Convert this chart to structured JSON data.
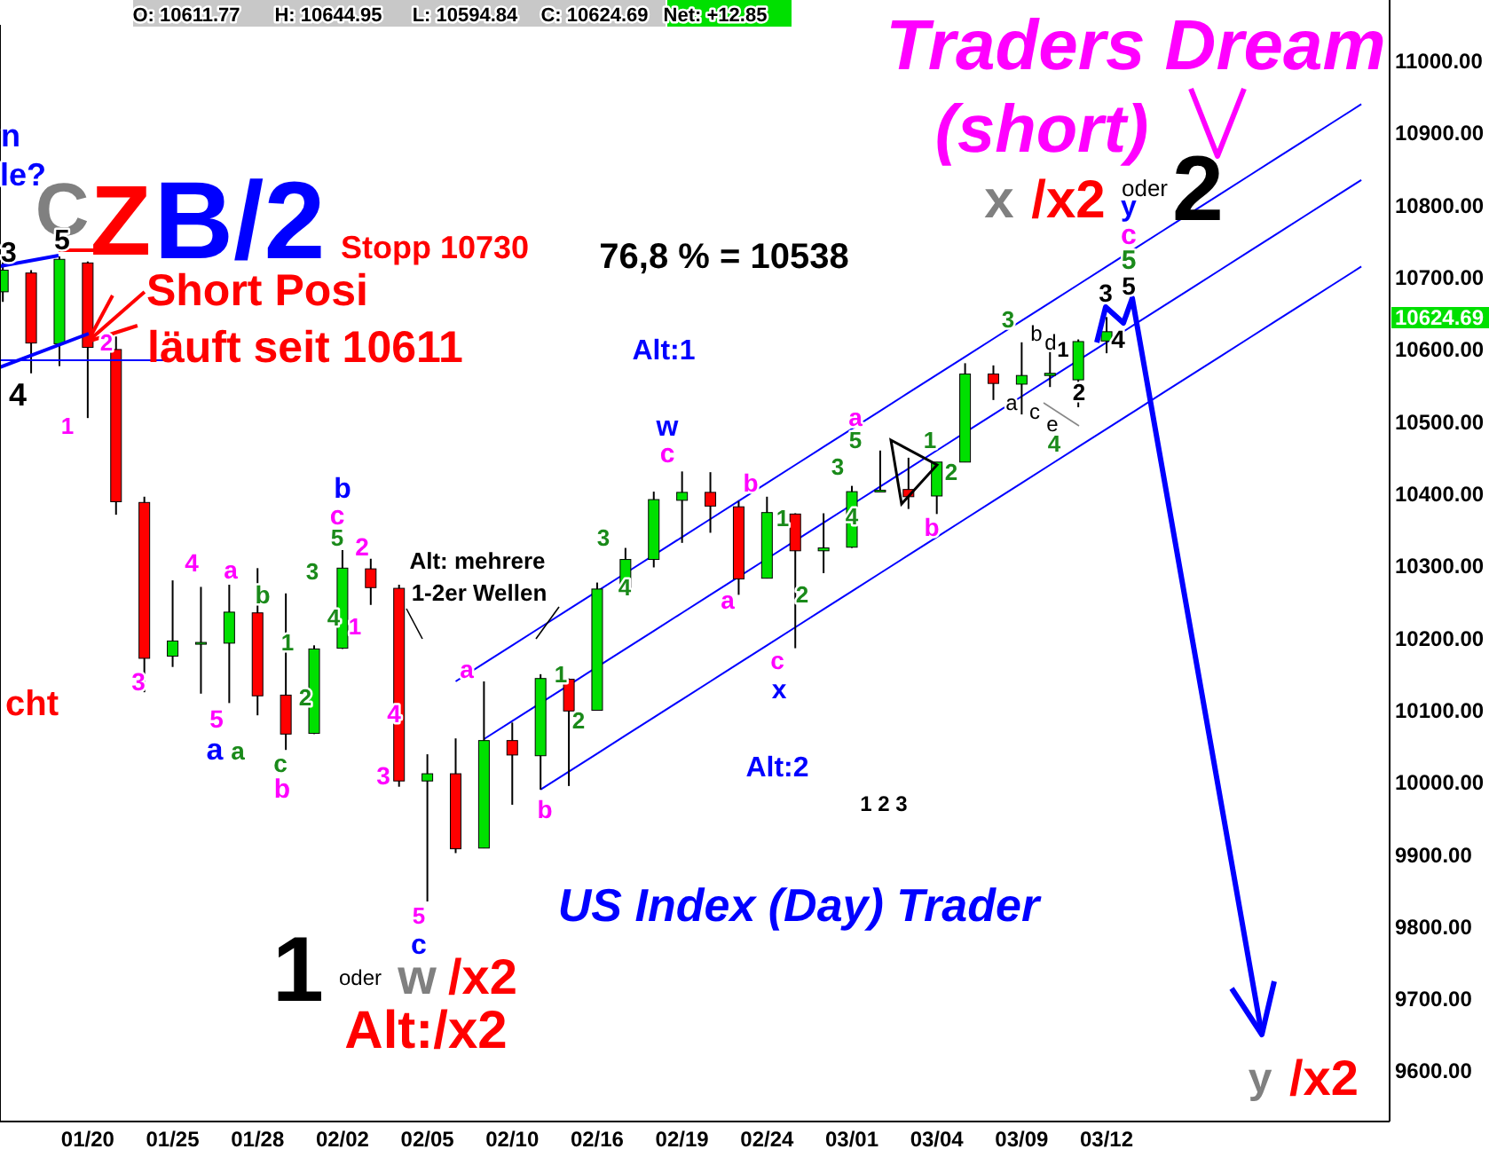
{
  "chart_data": {
    "type": "candlestick",
    "categories": [
      null,
      null,
      null,
      "01/20",
      null,
      null,
      "01/25",
      null,
      null,
      "01/28",
      null,
      null,
      "02/02",
      null,
      null,
      "02/05",
      null,
      null,
      "02/10",
      null,
      null,
      "02/16",
      null,
      null,
      "02/19",
      null,
      null,
      "02/24",
      null,
      null,
      "03/01",
      null,
      null,
      "03/04",
      null,
      null,
      "03/09",
      null,
      null,
      "03/12",
      null,
      null,
      null,
      null,
      null,
      null,
      null,
      null,
      null
    ],
    "ohlc": [
      [
        10680,
        10723,
        10666,
        10710
      ],
      [
        10706,
        10710,
        10567,
        10609
      ],
      [
        10608,
        10729,
        10577,
        10725
      ],
      [
        10720,
        10722,
        10505,
        10603
      ],
      [
        10600,
        10618,
        10371,
        10389
      ],
      [
        10388,
        10396,
        10125,
        10172
      ],
      [
        10175,
        10280,
        10160,
        10196
      ],
      [
        10194,
        10271,
        10123,
        10194
      ],
      [
        10193,
        10274,
        10110,
        10236
      ],
      [
        10235,
        10297,
        10093,
        10120
      ],
      [
        10121,
        10262,
        10045,
        10067
      ],
      [
        10068,
        10190,
        10067,
        10185
      ],
      [
        10186,
        10322,
        10185,
        10297
      ],
      [
        10296,
        10310,
        10246,
        10270
      ],
      [
        10269,
        10274,
        9994,
        10002
      ],
      [
        10002,
        10039,
        9835,
        10012
      ],
      [
        10012,
        10061,
        9902,
        9908
      ],
      [
        9909,
        10140,
        9909,
        10058
      ],
      [
        10058,
        10083,
        9969,
        10038
      ],
      [
        10037,
        10150,
        9990,
        10144
      ],
      [
        10143,
        10144,
        9995,
        10099
      ],
      [
        10100,
        10277,
        10100,
        10268
      ],
      [
        10268,
        10325,
        10266,
        10309
      ],
      [
        10309,
        10403,
        10298,
        10392
      ],
      [
        10391,
        10431,
        10332,
        10402
      ],
      [
        10402,
        10430,
        10346,
        10383
      ],
      [
        10382,
        10390,
        10260,
        10282
      ],
      [
        10283,
        10396,
        10283,
        10374
      ],
      [
        10372,
        10373,
        10186,
        10321
      ],
      [
        10321,
        10373,
        10290,
        10325
      ],
      [
        10326,
        10411,
        10325,
        10403
      ],
      [
        10404,
        10460,
        10402,
        10405
      ],
      [
        10406,
        10450,
        10379,
        10396
      ],
      [
        10397,
        10444,
        10372,
        10444
      ],
      [
        10444,
        10581,
        10444,
        10566
      ],
      [
        10566,
        10578,
        10530,
        10553
      ],
      [
        10552,
        10610,
        10510,
        10564
      ],
      [
        10564,
        10597,
        10548,
        10567
      ],
      [
        10558,
        10614,
        10520,
        10611
      ],
      [
        10611.77,
        10644.95,
        10594.84,
        10624.69
      ],
      null,
      null,
      null,
      null,
      null,
      null,
      null,
      null,
      null
    ],
    "colors": [
      "#00e000",
      "#ff0000",
      "#00e000",
      "#ff0000",
      "#ff0000",
      "#ff0000",
      "#00e000",
      "#00e000",
      "#00e000",
      "#ff0000",
      "#ff0000",
      "#00e000",
      "#00e000",
      "#ff0000",
      "#ff0000",
      "#00e000",
      "#ff0000",
      "#00e000",
      "#ff0000",
      "#00e000",
      "#ff0000",
      "#00e000",
      "#00e000",
      "#00e000",
      "#00e000",
      "#ff0000",
      "#ff0000",
      "#00e000",
      "#ff0000",
      "#00e000",
      "#00e000",
      "#00e000",
      "#ff0000",
      "#00e000",
      "#00e000",
      "#ff0000",
      "#00e000",
      "#00e000",
      "#00e000",
      "#00e000",
      null,
      null,
      null,
      null,
      null,
      null,
      null,
      null,
      null
    ],
    "series": [
      {
        "type": "line",
        "color": "#0000ff",
        "values": [
          null,
          null,
          null,
          null,
          null,
          null,
          null,
          null,
          null,
          null,
          null,
          null,
          null,
          null,
          null,
          null,
          10140,
          10165,
          10190,
          10215,
          10240,
          10265,
          10290,
          10315,
          10340,
          10365,
          10390,
          10415,
          10440,
          10465,
          10490,
          10515,
          10540,
          10565,
          10590,
          10615,
          10640,
          10665,
          10690,
          10715,
          10740,
          10765,
          10790,
          10815,
          10840,
          10865,
          10890,
          10915,
          10940
        ]
      },
      {
        "type": "line",
        "color": "#0000ff",
        "values": [
          null,
          null,
          null,
          null,
          null,
          null,
          null,
          null,
          null,
          null,
          null,
          null,
          null,
          null,
          null,
          null,
          null,
          10060,
          10085,
          10110,
          10135,
          10160,
          10185,
          10210,
          10235,
          10260,
          10285,
          10310,
          10335,
          10360,
          10385,
          10410,
          10435,
          10460,
          10485,
          10510,
          10535,
          10560,
          10585,
          10610,
          10635,
          10660,
          10685,
          10710,
          10735,
          10760,
          10785,
          10810,
          10835
        ]
      },
      {
        "type": "line",
        "color": "#0000ff",
        "values": [
          null,
          null,
          null,
          null,
          null,
          null,
          null,
          null,
          null,
          null,
          null,
          null,
          null,
          null,
          null,
          null,
          null,
          null,
          null,
          9990,
          10015,
          10040,
          10065,
          10090,
          10115,
          10140,
          10165,
          10190,
          10215,
          10240,
          10265,
          10290,
          10315,
          10340,
          10365,
          10390,
          10415,
          10440,
          10465,
          10490,
          10515,
          10540,
          10565,
          10590,
          10615,
          10640,
          10665,
          10690,
          10715
        ]
      }
    ],
    "ylim": [
      9530,
      11050
    ],
    "yticks": [
      {
        "value": 9600,
        "label": "9600.00"
      },
      {
        "value": 9700,
        "label": "9700.00"
      },
      {
        "value": 9800,
        "label": "9800.00"
      },
      {
        "value": 9900,
        "label": "9900.00"
      },
      {
        "value": 10000,
        "label": "10000.00"
      },
      {
        "value": 10100,
        "label": "10100.00"
      },
      {
        "value": 10200,
        "label": "10200.00"
      },
      {
        "value": 10300,
        "label": "10300.00"
      },
      {
        "value": 10400,
        "label": "10400.00"
      },
      {
        "value": 10500,
        "label": "10500.00"
      },
      {
        "value": 10600,
        "label": "10600.00"
      },
      {
        "value": 10700,
        "label": "10700.00"
      },
      {
        "value": 10800,
        "label": "10800.00"
      },
      {
        "value": 10900,
        "label": "10900.00"
      },
      {
        "value": 11000,
        "label": "11000.00"
      }
    ],
    "annotations": [
      "O: 10611.77",
      "H: 10644.95",
      "L: 10594.84",
      "C: 10624.69",
      "Net: +12.85",
      "Traders Dream",
      "(short)",
      "x",
      "/x2",
      "oder",
      "2",
      "y",
      "c",
      "5",
      "5",
      "3",
      "4",
      "76,8 % = 10538",
      "Stopp 10730",
      {
        "text": "Short Posi",
        "x": "01/20",
        "y": 10611
      },
      "läuft seit 10611",
      "C",
      "Z",
      "B/2",
      "n",
      "le?",
      "cht",
      "3",
      "5",
      "4",
      "1",
      "2",
      "Alt:1",
      "w",
      "c",
      "b",
      "c",
      "5",
      "2",
      "3",
      "1",
      "4",
      "a",
      "b",
      "1",
      "2",
      "4",
      "3",
      "5",
      "a",
      "a",
      "c",
      "b",
      "Alt: mehrere",
      "1-2er Wellen",
      "a",
      "4",
      "3",
      "5",
      "c",
      "1",
      "2",
      "b",
      "3",
      "4",
      "a",
      "b",
      "a",
      "5",
      "3",
      "4",
      "1",
      "1",
      "2",
      "b",
      "3",
      "b",
      "d",
      "1",
      "2",
      "a",
      "c",
      "e",
      "4",
      "c",
      "x",
      "2",
      "Alt:2",
      "1 2 3",
      "US Index (Day) Trader",
      "1",
      "oder",
      "w",
      "/x2",
      "Alt:/x2",
      "y",
      "/x2",
      "10624.69"
    ],
    "grid": false
  }
}
